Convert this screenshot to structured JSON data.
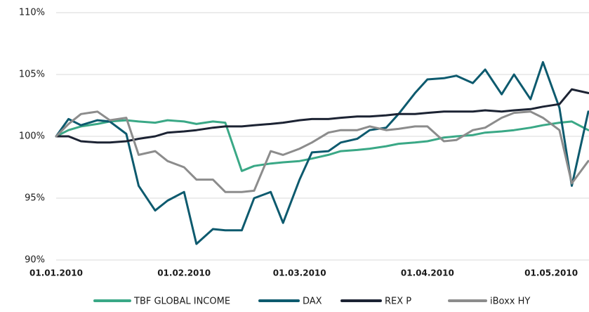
{
  "chart_data": {
    "type": "line",
    "x": [
      "2010-01-01",
      "2010-01-04",
      "2010-01-07",
      "2010-01-11",
      "2010-01-14",
      "2010-01-18",
      "2010-01-21",
      "2010-01-25",
      "2010-01-28",
      "2010-02-01",
      "2010-02-04",
      "2010-02-08",
      "2010-02-11",
      "2010-02-15",
      "2010-02-18",
      "2010-02-22",
      "2010-02-25",
      "2010-03-01",
      "2010-03-04",
      "2010-03-08",
      "2010-03-11",
      "2010-03-15",
      "2010-03-18",
      "2010-03-22",
      "2010-03-25",
      "2010-03-29",
      "2010-04-01",
      "2010-04-05",
      "2010-04-08",
      "2010-04-12",
      "2010-04-15",
      "2010-04-19",
      "2010-04-22",
      "2010-04-26",
      "2010-04-29",
      "2010-05-03",
      "2010-05-06",
      "2010-05-10"
    ],
    "series": [
      {
        "name": "TBF GLOBAL INCOME",
        "color": "#3aa886",
        "values": [
          100,
          100.5,
          100.8,
          101,
          101.2,
          101.3,
          101.2,
          101.1,
          101.3,
          101.2,
          101,
          101.2,
          101.1,
          97.2,
          97.6,
          97.8,
          97.9,
          98,
          98.2,
          98.5,
          98.8,
          98.9,
          99,
          99.2,
          99.4,
          99.5,
          99.6,
          99.9,
          100,
          100.1,
          100.3,
          100.4,
          100.5,
          100.7,
          100.9,
          101.1,
          101.2,
          100.5
        ]
      },
      {
        "name": "DAX",
        "color": "#0d5a6e",
        "values": [
          100,
          101.4,
          100.9,
          101.3,
          101.2,
          100.2,
          96,
          94,
          94.8,
          95.5,
          91.3,
          92.5,
          92.4,
          92.4,
          95,
          95.5,
          93,
          96.5,
          98.7,
          98.8,
          99.5,
          99.8,
          100.5,
          100.7,
          101.8,
          103.5,
          104.6,
          104.7,
          104.9,
          104.3,
          105.4,
          103.4,
          105,
          103,
          106,
          102.3,
          96,
          102
        ]
      },
      {
        "name": "REX P",
        "color": "#1c2333",
        "values": [
          100,
          100,
          99.6,
          99.5,
          99.5,
          99.6,
          99.8,
          100,
          100.3,
          100.4,
          100.5,
          100.7,
          100.8,
          100.8,
          100.9,
          101,
          101.1,
          101.3,
          101.4,
          101.4,
          101.5,
          101.6,
          101.6,
          101.7,
          101.8,
          101.8,
          101.9,
          102,
          102,
          102,
          102.1,
          102,
          102.1,
          102.2,
          102.4,
          102.6,
          103.8,
          103.5
        ]
      },
      {
        "name": "iBoxx HY",
        "color": "#8c8c8c",
        "values": [
          100,
          101,
          101.8,
          102,
          101.3,
          101.5,
          98.5,
          98.8,
          98,
          97.5,
          96.5,
          96.5,
          95.5,
          95.5,
          95.6,
          98.8,
          98.5,
          99,
          99.5,
          100.3,
          100.5,
          100.5,
          100.8,
          100.5,
          100.6,
          100.8,
          100.8,
          99.6,
          99.7,
          100.5,
          100.7,
          101.5,
          101.9,
          102,
          101.5,
          100.5,
          96.2,
          98
        ]
      }
    ],
    "xlim": [
      "2010-01-01",
      "2010-05-10"
    ],
    "xticks": [
      {
        "value": "2010-01-01",
        "label": "01.01.2010"
      },
      {
        "value": "2010-02-01",
        "label": "01.02.2010"
      },
      {
        "value": "2010-03-01",
        "label": "01.03.2010"
      },
      {
        "value": "2010-04-01",
        "label": "01.04.2010"
      },
      {
        "value": "2010-05-01",
        "label": "01.05.2010"
      }
    ],
    "ylim": [
      90,
      110
    ],
    "yticks": [
      {
        "value": 90,
        "label": "90%"
      },
      {
        "value": 95,
        "label": "95%"
      },
      {
        "value": 100,
        "label": "100%"
      },
      {
        "value": 105,
        "label": "105%"
      },
      {
        "value": 110,
        "label": "110%"
      }
    ],
    "grid": true,
    "legend": "bottom"
  }
}
